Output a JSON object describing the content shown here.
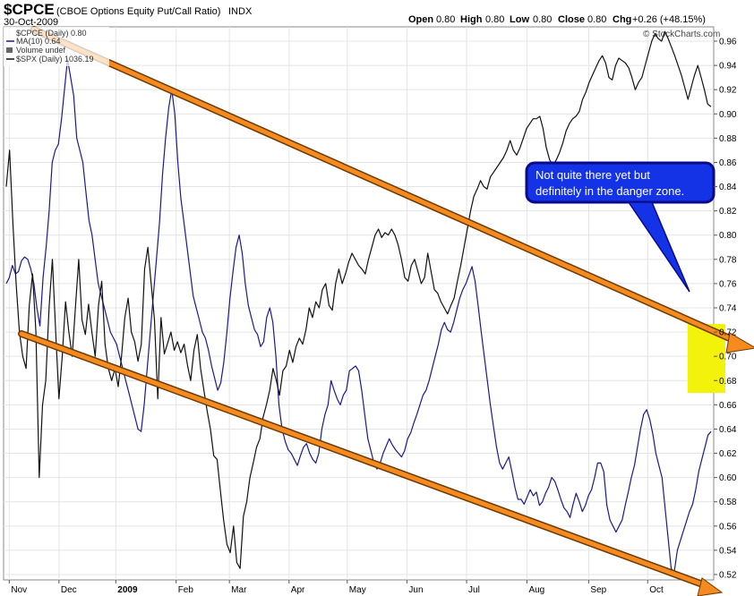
{
  "header": {
    "symbol": "$CPCE",
    "name": "(CBOE Options Equity Put/Call Ratio)",
    "exchange": "INDX",
    "date": "30-Oct-2009",
    "open_label": "Open",
    "open": "0.80",
    "high_label": "High",
    "high": "0.80",
    "low_label": "Low",
    "low": "0.80",
    "close_label": "Close",
    "close": "0.80",
    "chg_label": "Chg",
    "chg": "+0.26 (+48.15%)",
    "watermark": "© StockCharts.com"
  },
  "legend": {
    "item1": "$CPCE (Daily) 0.80",
    "item2": "MA(10) 0.64",
    "item3": "Volume undef",
    "item4": "$SPX (Daily) 1036.19"
  },
  "callout": {
    "line1": "Not quite there yet but",
    "line2": "definitely in the danger zone."
  },
  "colors": {
    "ma_line": "#1a1a8c",
    "spx_line": "#111111",
    "trend_arrow": "#f58a1f",
    "trend_arrow_outline": "#6b3a05",
    "callout_fill": "#1432e6",
    "callout_border": "#0a0a8a",
    "highlight": "#f2f20a",
    "grid": "#e4e4e4"
  },
  "chart_data": {
    "type": "line",
    "y_axis": {
      "ticks": [
        "0.96",
        "0.94",
        "0.92",
        "0.90",
        "0.88",
        "0.86",
        "0.84",
        "0.82",
        "0.80",
        "0.78",
        "0.76",
        "0.74",
        "0.72",
        "0.70",
        "0.68",
        "0.66",
        "0.64",
        "0.62",
        "0.60",
        "0.58",
        "0.56",
        "0.54",
        "0.52"
      ],
      "ylim": [
        0.515,
        0.975
      ]
    },
    "x_axis": {
      "ticks": [
        {
          "label": "Nov",
          "bold": false,
          "frac": 0.008
        },
        {
          "label": "Dec",
          "bold": false,
          "frac": 0.078
        },
        {
          "label": "2009",
          "bold": true,
          "frac": 0.158
        },
        {
          "label": "Feb",
          "bold": false,
          "frac": 0.243
        },
        {
          "label": "Mar",
          "bold": false,
          "frac": 0.318
        },
        {
          "label": "Apr",
          "bold": false,
          "frac": 0.402
        },
        {
          "label": "May",
          "bold": false,
          "frac": 0.484
        },
        {
          "label": "Jun",
          "bold": false,
          "frac": 0.568
        },
        {
          "label": "Jul",
          "bold": false,
          "frac": 0.652
        },
        {
          "label": "Aug",
          "bold": false,
          "frac": 0.737
        },
        {
          "label": "Sep",
          "bold": false,
          "frac": 0.824
        },
        {
          "label": "Oct",
          "bold": false,
          "frac": 0.907
        }
      ]
    },
    "series": [
      {
        "name": "MA(10)",
        "values": [
          0.76,
          0.765,
          0.775,
          0.768,
          0.77,
          0.779,
          0.782,
          0.78,
          0.772,
          0.76,
          0.74,
          0.725,
          0.765,
          0.79,
          0.82,
          0.86,
          0.87,
          0.875,
          0.895,
          0.92,
          0.945,
          0.93,
          0.915,
          0.88,
          0.87,
          0.86,
          0.835,
          0.812,
          0.8,
          0.78,
          0.76,
          0.75,
          0.74,
          0.73,
          0.72,
          0.715,
          0.71,
          0.7,
          0.69,
          0.68,
          0.67,
          0.66,
          0.65,
          0.64,
          0.638,
          0.66,
          0.69,
          0.72,
          0.75,
          0.78,
          0.81,
          0.85,
          0.88,
          0.905,
          0.92,
          0.9,
          0.86,
          0.83,
          0.81,
          0.79,
          0.77,
          0.75,
          0.74,
          0.73,
          0.72,
          0.715,
          0.705,
          0.692,
          0.682,
          0.672,
          0.678,
          0.695,
          0.72,
          0.748,
          0.77,
          0.79,
          0.8,
          0.785,
          0.76,
          0.742,
          0.732,
          0.722,
          0.718,
          0.708,
          0.712,
          0.732,
          0.74,
          0.728,
          0.7,
          0.66,
          0.64,
          0.63,
          0.623,
          0.62,
          0.615,
          0.61,
          0.618,
          0.625,
          0.628,
          0.62,
          0.615,
          0.612,
          0.62,
          0.64,
          0.652,
          0.66,
          0.68,
          0.672,
          0.665,
          0.66,
          0.668,
          0.672,
          0.688,
          0.69,
          0.692,
          0.688,
          0.672,
          0.652,
          0.632,
          0.622,
          0.612,
          0.607,
          0.612,
          0.62,
          0.626,
          0.632,
          0.627,
          0.623,
          0.62,
          0.617,
          0.622,
          0.632,
          0.637,
          0.645,
          0.652,
          0.66,
          0.668,
          0.672,
          0.68,
          0.69,
          0.7,
          0.71,
          0.722,
          0.728,
          0.722,
          0.72,
          0.728,
          0.738,
          0.748,
          0.755,
          0.76,
          0.767,
          0.774,
          0.762,
          0.742,
          0.72,
          0.7,
          0.68,
          0.66,
          0.642,
          0.625,
          0.612,
          0.607,
          0.612,
          0.617,
          0.605,
          0.592,
          0.582,
          0.582,
          0.578,
          0.584,
          0.59,
          0.585,
          0.588,
          0.577,
          0.58,
          0.587,
          0.592,
          0.6,
          0.597,
          0.59,
          0.582,
          0.575,
          0.572,
          0.567,
          0.578,
          0.587,
          0.58,
          0.572,
          0.577,
          0.585,
          0.59,
          0.6,
          0.612,
          0.612,
          0.605,
          0.577,
          0.565,
          0.56,
          0.555,
          0.56,
          0.565,
          0.577,
          0.588,
          0.6,
          0.61,
          0.625,
          0.64,
          0.652,
          0.656,
          0.648,
          0.636,
          0.62,
          0.61,
          0.6,
          0.575,
          0.55,
          0.525,
          0.522,
          0.54,
          0.548,
          0.556,
          0.564,
          0.572,
          0.578,
          0.59,
          0.605,
          0.615,
          0.625,
          0.635,
          0.638
        ]
      },
      {
        "name": "$SPX (Daily)",
        "values": [
          0.84,
          0.87,
          0.81,
          0.76,
          0.72,
          0.7,
          0.69,
          0.742,
          0.768,
          0.72,
          0.6,
          0.66,
          0.68,
          0.74,
          0.78,
          0.72,
          0.665,
          0.7,
          0.745,
          0.72,
          0.7,
          0.74,
          0.78,
          0.73,
          0.718,
          0.743,
          0.72,
          0.7,
          0.742,
          0.762,
          0.71,
          0.69,
          0.68,
          0.69,
          0.675,
          0.7,
          0.732,
          0.748,
          0.72,
          0.712,
          0.696,
          0.71,
          0.772,
          0.79,
          0.76,
          0.73,
          0.665,
          0.732,
          0.702,
          0.711,
          0.72,
          0.705,
          0.712,
          0.703,
          0.71,
          0.693,
          0.68,
          0.705,
          0.718,
          0.69,
          0.672,
          0.655,
          0.64,
          0.618,
          0.615,
          0.59,
          0.565,
          0.545,
          0.538,
          0.56,
          0.53,
          0.525,
          0.568,
          0.58,
          0.6,
          0.612,
          0.625,
          0.632,
          0.65,
          0.66,
          0.672,
          0.69,
          0.68,
          0.668,
          0.688,
          0.692,
          0.705,
          0.695,
          0.708,
          0.715,
          0.71,
          0.722,
          0.74,
          0.732,
          0.745,
          0.74,
          0.755,
          0.76,
          0.742,
          0.738,
          0.76,
          0.772,
          0.76,
          0.768,
          0.778,
          0.785,
          0.78,
          0.775,
          0.772,
          0.768,
          0.78,
          0.79,
          0.8,
          0.805,
          0.798,
          0.802,
          0.8,
          0.805,
          0.8,
          0.792,
          0.78,
          0.765,
          0.762,
          0.775,
          0.78,
          0.77,
          0.76,
          0.765,
          0.785,
          0.77,
          0.755,
          0.752,
          0.745,
          0.74,
          0.735,
          0.742,
          0.748,
          0.762,
          0.775,
          0.79,
          0.805,
          0.82,
          0.832,
          0.838,
          0.845,
          0.84,
          0.838,
          0.848,
          0.852,
          0.856,
          0.86,
          0.864,
          0.87,
          0.878,
          0.87,
          0.866,
          0.872,
          0.88,
          0.888,
          0.892,
          0.896,
          0.896,
          0.898,
          0.888,
          0.872,
          0.862,
          0.858,
          0.862,
          0.868,
          0.876,
          0.886,
          0.892,
          0.896,
          0.898,
          0.902,
          0.912,
          0.918,
          0.926,
          0.932,
          0.938,
          0.944,
          0.948,
          0.942,
          0.93,
          0.928,
          0.94,
          0.946,
          0.944,
          0.942,
          0.938,
          0.93,
          0.92,
          0.926,
          0.93,
          0.94,
          0.95,
          0.96,
          0.966,
          0.962,
          0.96,
          0.968,
          0.962,
          0.955,
          0.948,
          0.94,
          0.932,
          0.922,
          0.912,
          0.922,
          0.932,
          0.94,
          0.93,
          0.92,
          0.908,
          0.906
        ]
      }
    ]
  }
}
